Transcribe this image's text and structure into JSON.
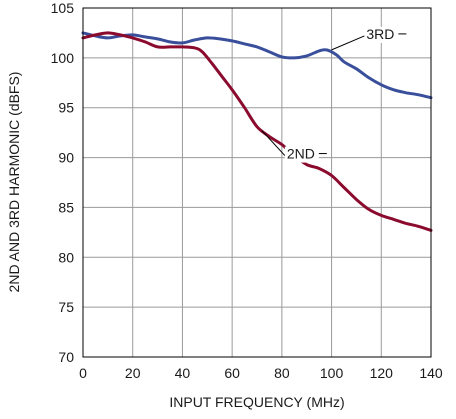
{
  "chart_data": {
    "type": "line",
    "title": "",
    "xlabel": "INPUT FREQUENCY (MHz)",
    "ylabel": "2ND AND 3RD HARMONIC (dBFS)",
    "xlim": [
      0,
      140
    ],
    "ylim": [
      70,
      105
    ],
    "xticks": [
      "0",
      "20",
      "40",
      "60",
      "80",
      "100",
      "120",
      "140"
    ],
    "yticks": [
      "70",
      "75",
      "80",
      "85",
      "90",
      "95",
      "100",
      "105"
    ],
    "grid": true,
    "legend": "inline labels",
    "series": [
      {
        "name": "3RD",
        "color": "#3a4f9c",
        "x": [
          0,
          5,
          10,
          15,
          20,
          25,
          30,
          35,
          40,
          45,
          50,
          55,
          60,
          65,
          70,
          75,
          80,
          85,
          90,
          95,
          98,
          102,
          105,
          110,
          115,
          120,
          125,
          130,
          135,
          140
        ],
        "y": [
          102.5,
          102.2,
          102.0,
          102.2,
          102.3,
          102.1,
          101.9,
          101.6,
          101.5,
          101.8,
          102.0,
          101.9,
          101.7,
          101.4,
          101.1,
          100.6,
          100.1,
          100.0,
          100.2,
          100.7,
          100.8,
          100.3,
          99.6,
          98.9,
          98.0,
          97.3,
          96.8,
          96.5,
          96.3,
          96.0
        ]
      },
      {
        "name": "2ND",
        "color": "#8b0b2e",
        "x": [
          0,
          5,
          10,
          15,
          20,
          25,
          30,
          35,
          40,
          45,
          48,
          52,
          56,
          60,
          65,
          70,
          75,
          80,
          85,
          90,
          95,
          100,
          105,
          110,
          115,
          120,
          125,
          130,
          135,
          140
        ],
        "y": [
          102.0,
          102.3,
          102.5,
          102.3,
          102.0,
          101.6,
          101.1,
          101.1,
          101.1,
          101.0,
          100.6,
          99.4,
          98.1,
          96.8,
          95.0,
          93.1,
          92.1,
          91.3,
          90.2,
          89.3,
          88.9,
          88.2,
          87.0,
          85.8,
          84.8,
          84.2,
          83.8,
          83.4,
          83.1,
          82.7
        ]
      }
    ],
    "annotations": [
      {
        "text": "3RD",
        "series": "3RD"
      },
      {
        "text": "2ND",
        "series": "2ND"
      }
    ]
  }
}
